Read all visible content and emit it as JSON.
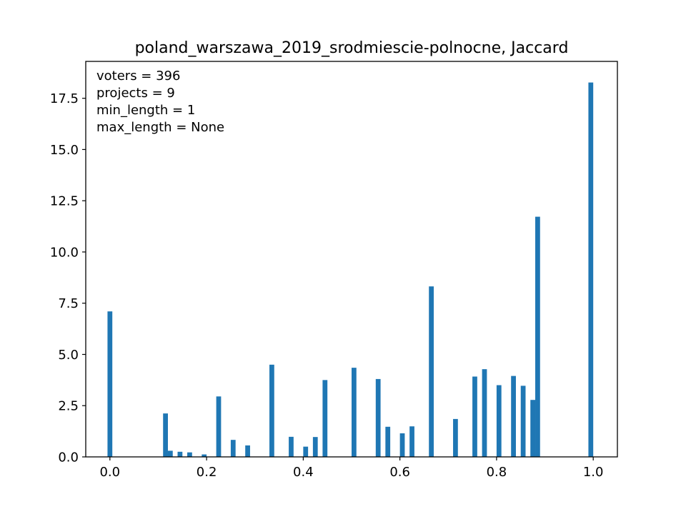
{
  "chart_data": {
    "type": "bar",
    "title": "poland_warszawa_2019_srodmiescie-polnocne, Jaccard",
    "xlabel": "",
    "ylabel": "",
    "xlim": [
      -0.05,
      1.05
    ],
    "ylim": [
      0,
      19.3
    ],
    "bar_width": 0.01,
    "bar_color": "#1f77b4",
    "grid": false,
    "xticks": [
      0.0,
      0.2,
      0.4,
      0.6,
      0.8,
      1.0
    ],
    "xtick_labels": [
      "0.0",
      "0.2",
      "0.4",
      "0.6",
      "0.8",
      "1.0"
    ],
    "yticks": [
      0.0,
      2.5,
      5.0,
      7.5,
      10.0,
      12.5,
      15.0,
      17.5
    ],
    "ytick_labels": [
      "0.0",
      "2.5",
      "5.0",
      "7.5",
      "10.0",
      "12.5",
      "15.0",
      "17.5"
    ],
    "annotations": [
      "voters = 396",
      "projects = 9",
      "min_length = 1",
      "max_length = None"
    ],
    "bars": [
      {
        "x": 0.0,
        "y": 7.1
      },
      {
        "x": 0.115,
        "y": 2.12
      },
      {
        "x": 0.125,
        "y": 0.3
      },
      {
        "x": 0.145,
        "y": 0.25
      },
      {
        "x": 0.165,
        "y": 0.22
      },
      {
        "x": 0.195,
        "y": 0.12
      },
      {
        "x": 0.225,
        "y": 2.95
      },
      {
        "x": 0.255,
        "y": 0.83
      },
      {
        "x": 0.285,
        "y": 0.56
      },
      {
        "x": 0.335,
        "y": 4.5
      },
      {
        "x": 0.375,
        "y": 0.98
      },
      {
        "x": 0.405,
        "y": 0.5
      },
      {
        "x": 0.425,
        "y": 0.97
      },
      {
        "x": 0.445,
        "y": 3.75
      },
      {
        "x": 0.505,
        "y": 4.35
      },
      {
        "x": 0.555,
        "y": 3.8
      },
      {
        "x": 0.575,
        "y": 1.47
      },
      {
        "x": 0.605,
        "y": 1.15
      },
      {
        "x": 0.625,
        "y": 1.49
      },
      {
        "x": 0.665,
        "y": 8.32
      },
      {
        "x": 0.715,
        "y": 1.85
      },
      {
        "x": 0.755,
        "y": 3.92
      },
      {
        "x": 0.775,
        "y": 4.28
      },
      {
        "x": 0.805,
        "y": 3.5
      },
      {
        "x": 0.835,
        "y": 3.95
      },
      {
        "x": 0.855,
        "y": 3.47
      },
      {
        "x": 0.875,
        "y": 2.78
      },
      {
        "x": 0.885,
        "y": 11.72
      },
      {
        "x": 0.995,
        "y": 18.27
      }
    ]
  }
}
